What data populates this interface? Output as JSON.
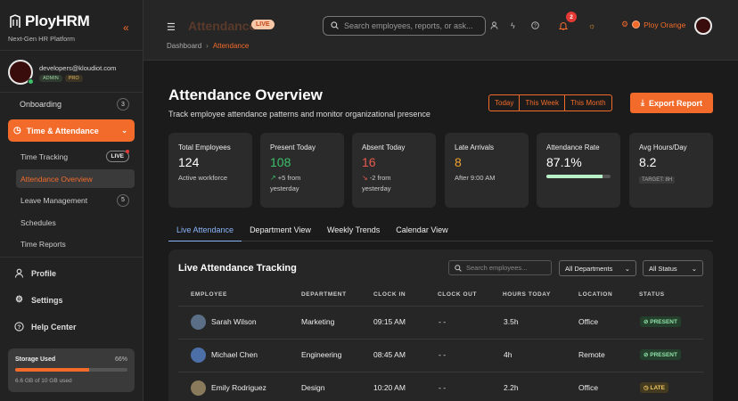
{
  "brand": {
    "name": "PloyHRM",
    "tagline": "Next-Gen HR Platform",
    "collapse_icon": "double-chevron-left-icon"
  },
  "user": {
    "email": "developers@kloudiot.com",
    "badges": [
      "ADMIN",
      "PRO"
    ]
  },
  "sidebar": {
    "onboarding": {
      "label": "Onboarding",
      "count": "3"
    },
    "time_attendance": {
      "label": "Time & Attendance"
    },
    "sub_items": [
      {
        "label": "Time Tracking",
        "pill": "LIVE"
      },
      {
        "label": "Attendance Overview"
      },
      {
        "label": "Leave Management",
        "count": "5"
      },
      {
        "label": "Schedules"
      },
      {
        "label": "Time Reports"
      }
    ],
    "bottom": [
      {
        "label": "Profile",
        "icon": "user-icon"
      },
      {
        "label": "Settings",
        "icon": "gear-icon"
      },
      {
        "label": "Help Center",
        "icon": "help-icon"
      }
    ],
    "storage": {
      "label": "Storage Used",
      "percent_text": "66%",
      "percent": 66,
      "detail": "6.6 GB of 10 GB used"
    }
  },
  "header": {
    "title": "Attendance",
    "live": "LIVE",
    "search_placeholder": "Search employees, reports, or ask...",
    "notif_count": "2",
    "org": "Ploy Orange"
  },
  "breadcrumb": {
    "home": "Dashboard",
    "current": "Attendance"
  },
  "page": {
    "title": "Attendance Overview",
    "subtitle": "Track employee attendance patterns and monitor organizational presence",
    "ranges": [
      "Today",
      "This Week",
      "This Month"
    ],
    "export": "Export Report"
  },
  "stats": {
    "total": {
      "label": "Total Employees",
      "value": "124",
      "note": "Active workforce"
    },
    "present": {
      "label": "Present Today",
      "value": "108",
      "note1": "+5 from",
      "note2": "yesterday"
    },
    "absent": {
      "label": "Absent Today",
      "value": "16",
      "note1": "-2 from",
      "note2": "yesterday"
    },
    "late": {
      "label": "Late Arrivals",
      "value": "8",
      "note": "After 9:00 AM"
    },
    "rate": {
      "label": "Attendance Rate",
      "value": "87.1%",
      "fill": 0.871
    },
    "hours": {
      "label": "Avg Hours/Day",
      "value": "8.2",
      "target": "TARGET: 8H"
    }
  },
  "tabs": [
    "Live Attendance",
    "Department View",
    "Weekly Trends",
    "Calendar View"
  ],
  "table": {
    "title": "Live Attendance Tracking",
    "search_placeholder": "Search employees...",
    "dept_filter": "All Departments",
    "status_filter": "All Status",
    "headers": [
      "EMPLOYEE",
      "DEPARTMENT",
      "CLOCK IN",
      "CLOCK OUT",
      "HOURS TODAY",
      "LOCATION",
      "STATUS"
    ],
    "rows": [
      {
        "name": "Sarah Wilson",
        "dept": "Marketing",
        "in": "09:15 AM",
        "out": "- -",
        "hours": "3.5h",
        "location": "Office",
        "status": "PRESENT"
      },
      {
        "name": "Michael Chen",
        "dept": "Engineering",
        "in": "08:45 AM",
        "out": "- -",
        "hours": "4h",
        "location": "Remote",
        "status": "PRESENT"
      },
      {
        "name": "Emily Rodriguez",
        "dept": "Design",
        "in": "10:20 AM",
        "out": "- -",
        "hours": "2.2h",
        "location": "Office",
        "status": "LATE"
      }
    ]
  }
}
